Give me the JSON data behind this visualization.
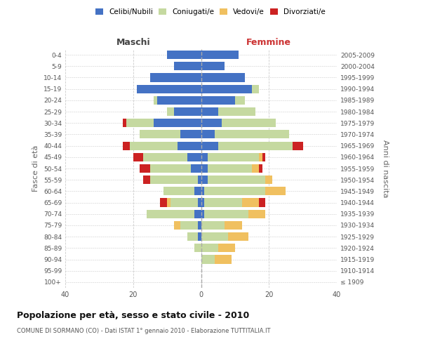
{
  "age_groups": [
    "100+",
    "95-99",
    "90-94",
    "85-89",
    "80-84",
    "75-79",
    "70-74",
    "65-69",
    "60-64",
    "55-59",
    "50-54",
    "45-49",
    "40-44",
    "35-39",
    "30-34",
    "25-29",
    "20-24",
    "15-19",
    "10-14",
    "5-9",
    "0-4"
  ],
  "birth_years": [
    "≤ 1909",
    "1910-1914",
    "1915-1919",
    "1920-1924",
    "1925-1929",
    "1930-1934",
    "1935-1939",
    "1940-1944",
    "1945-1949",
    "1950-1954",
    "1955-1959",
    "1960-1964",
    "1965-1969",
    "1970-1974",
    "1975-1979",
    "1980-1984",
    "1985-1989",
    "1990-1994",
    "1995-1999",
    "2000-2004",
    "2005-2009"
  ],
  "colors": {
    "single": "#4472C4",
    "married": "#c5d9a0",
    "widowed": "#f0c060",
    "divorced": "#cc2222"
  },
  "males": {
    "single": [
      0,
      0,
      0,
      0,
      1,
      1,
      2,
      1,
      2,
      1,
      3,
      4,
      7,
      6,
      14,
      8,
      13,
      19,
      15,
      8,
      10
    ],
    "married": [
      0,
      0,
      0,
      2,
      3,
      5,
      14,
      8,
      9,
      14,
      12,
      13,
      14,
      12,
      8,
      2,
      1,
      0,
      0,
      0,
      0
    ],
    "widowed": [
      0,
      0,
      0,
      0,
      0,
      2,
      0,
      1,
      0,
      0,
      0,
      0,
      0,
      0,
      0,
      0,
      0,
      0,
      0,
      0,
      0
    ],
    "divorced": [
      0,
      0,
      0,
      0,
      0,
      0,
      0,
      2,
      0,
      2,
      3,
      3,
      2,
      0,
      1,
      0,
      0,
      0,
      0,
      0,
      0
    ]
  },
  "females": {
    "single": [
      0,
      0,
      0,
      0,
      0,
      0,
      1,
      1,
      1,
      2,
      2,
      2,
      5,
      4,
      6,
      5,
      10,
      15,
      13,
      7,
      11
    ],
    "married": [
      0,
      0,
      4,
      5,
      8,
      7,
      13,
      11,
      18,
      17,
      13,
      15,
      22,
      22,
      16,
      11,
      3,
      2,
      0,
      0,
      0
    ],
    "widowed": [
      0,
      0,
      5,
      5,
      6,
      5,
      5,
      5,
      6,
      2,
      2,
      1,
      0,
      0,
      0,
      0,
      0,
      0,
      0,
      0,
      0
    ],
    "divorced": [
      0,
      0,
      0,
      0,
      0,
      0,
      0,
      2,
      0,
      0,
      1,
      1,
      3,
      0,
      0,
      0,
      0,
      0,
      0,
      0,
      0
    ]
  },
  "title": "Popolazione per età, sesso e stato civile - 2010",
  "subtitle": "COMUNE DI SORMANO (CO) - Dati ISTAT 1° gennaio 2010 - Elaborazione TUTTITALIA.IT",
  "label_maschi": "Maschi",
  "label_femmine": "Femmine",
  "ylabel_left": "Fasce di età",
  "ylabel_right": "Anni di nascita",
  "xlim": 40,
  "legend_labels": [
    "Celibi/Nubili",
    "Coniugati/e",
    "Vedovi/e",
    "Divorziati/e"
  ],
  "bg_color": "#ffffff",
  "grid_color": "#cccccc"
}
